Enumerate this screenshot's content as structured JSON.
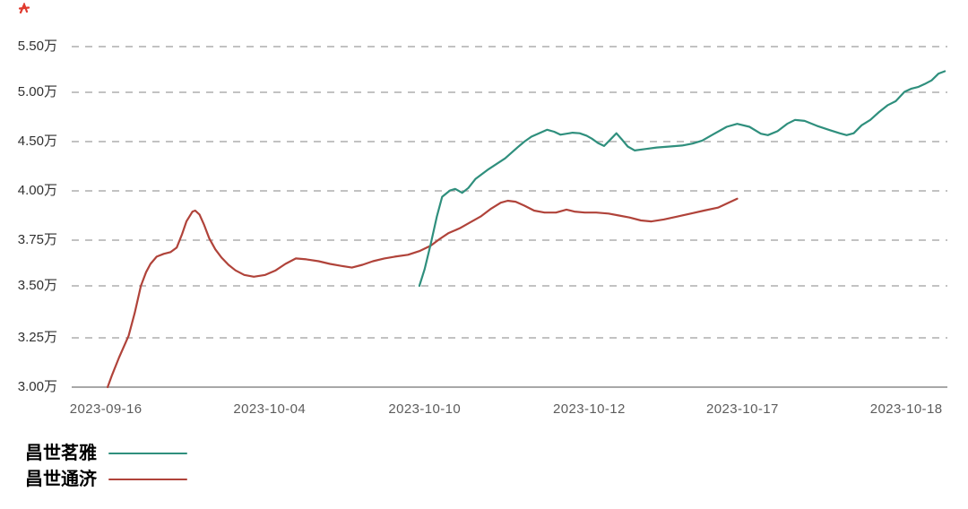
{
  "colors": {
    "mingya": "#2f8f7d",
    "tongji": "#b0433a",
    "grid": "#adadad",
    "axis": "#8c8c8c",
    "y_label_text": "#303030",
    "x_label_text": "#5c5c5c",
    "legend_text": "#000000",
    "artifact_red": "#e03b2f"
  },
  "chart_data": {
    "type": "line",
    "title": "",
    "unit": "万",
    "grid": {
      "style": "dashed",
      "baseline": "solid"
    },
    "legend": {
      "position": "bottom-left"
    },
    "y_axis": {
      "note": "non-linear axis: 0.50万 steps above 4.00万, 0.25万 steps below; equal pixel spacing",
      "ticks": [
        {
          "label": "5.50万",
          "value": 5.5
        },
        {
          "label": "5.00万",
          "value": 5.0
        },
        {
          "label": "4.50万",
          "value": 4.5
        },
        {
          "label": "4.00万",
          "value": 4.0
        },
        {
          "label": "3.75万",
          "value": 3.75
        },
        {
          "label": "3.50万",
          "value": 3.5
        },
        {
          "label": "3.25万",
          "value": 3.25
        },
        {
          "label": "3.00万",
          "value": 3.0
        }
      ]
    },
    "x_axis": {
      "type": "category-dates",
      "ticks": [
        {
          "label": "2023-09-16",
          "pos": 0.039
        },
        {
          "label": "2023-10-04",
          "pos": 0.226
        },
        {
          "label": "2023-10-10",
          "pos": 0.403
        },
        {
          "label": "2023-10-12",
          "pos": 0.591
        },
        {
          "label": "2023-10-17",
          "pos": 0.766
        },
        {
          "label": "2023-10-18",
          "pos": 0.953
        }
      ]
    },
    "series": [
      {
        "name": "昌世茗雅",
        "color": "#2f8f7d",
        "points": [
          [
            0.397,
            3.5
          ],
          [
            0.403,
            3.59
          ],
          [
            0.41,
            3.73
          ],
          [
            0.417,
            3.87
          ],
          [
            0.423,
            3.97
          ],
          [
            0.432,
            4.005
          ],
          [
            0.438,
            4.02
          ],
          [
            0.446,
            3.99
          ],
          [
            0.453,
            4.03
          ],
          [
            0.461,
            4.12
          ],
          [
            0.476,
            4.22
          ],
          [
            0.495,
            4.33
          ],
          [
            0.509,
            4.44
          ],
          [
            0.517,
            4.5
          ],
          [
            0.525,
            4.55
          ],
          [
            0.543,
            4.62
          ],
          [
            0.551,
            4.6
          ],
          [
            0.558,
            4.57
          ],
          [
            0.572,
            4.59
          ],
          [
            0.58,
            4.585
          ],
          [
            0.588,
            4.56
          ],
          [
            0.594,
            4.53
          ],
          [
            0.601,
            4.485
          ],
          [
            0.608,
            4.455
          ],
          [
            0.615,
            4.52
          ],
          [
            0.622,
            4.585
          ],
          [
            0.629,
            4.515
          ],
          [
            0.635,
            4.45
          ],
          [
            0.643,
            4.41
          ],
          [
            0.655,
            4.425
          ],
          [
            0.668,
            4.44
          ],
          [
            0.683,
            4.45
          ],
          [
            0.697,
            4.46
          ],
          [
            0.709,
            4.48
          ],
          [
            0.72,
            4.51
          ],
          [
            0.733,
            4.575
          ],
          [
            0.748,
            4.65
          ],
          [
            0.76,
            4.68
          ],
          [
            0.774,
            4.65
          ],
          [
            0.787,
            4.58
          ],
          [
            0.795,
            4.565
          ],
          [
            0.806,
            4.605
          ],
          [
            0.817,
            4.68
          ],
          [
            0.826,
            4.72
          ],
          [
            0.837,
            4.71
          ],
          [
            0.851,
            4.66
          ],
          [
            0.866,
            4.615
          ],
          [
            0.877,
            4.585
          ],
          [
            0.885,
            4.565
          ],
          [
            0.893,
            4.585
          ],
          [
            0.902,
            4.665
          ],
          [
            0.912,
            4.72
          ],
          [
            0.922,
            4.8
          ],
          [
            0.932,
            4.87
          ],
          [
            0.941,
            4.91
          ],
          [
            0.951,
            5.005
          ],
          [
            0.959,
            5.04
          ],
          [
            0.967,
            5.06
          ],
          [
            0.974,
            5.09
          ],
          [
            0.982,
            5.13
          ],
          [
            0.99,
            5.205
          ],
          [
            0.997,
            5.23
          ]
        ]
      },
      {
        "name": "昌世通济",
        "color": "#b0433a",
        "points": [
          [
            0.041,
            3.0
          ],
          [
            0.046,
            3.06
          ],
          [
            0.054,
            3.15
          ],
          [
            0.065,
            3.26
          ],
          [
            0.072,
            3.37
          ],
          [
            0.079,
            3.5
          ],
          [
            0.085,
            3.575
          ],
          [
            0.09,
            3.62
          ],
          [
            0.097,
            3.66
          ],
          [
            0.105,
            3.675
          ],
          [
            0.113,
            3.685
          ],
          [
            0.12,
            3.71
          ],
          [
            0.126,
            3.78
          ],
          [
            0.131,
            3.845
          ],
          [
            0.138,
            3.895
          ],
          [
            0.141,
            3.9
          ],
          [
            0.146,
            3.88
          ],
          [
            0.151,
            3.83
          ],
          [
            0.157,
            3.76
          ],
          [
            0.164,
            3.7
          ],
          [
            0.171,
            3.655
          ],
          [
            0.179,
            3.615
          ],
          [
            0.187,
            3.585
          ],
          [
            0.197,
            3.56
          ],
          [
            0.208,
            3.55
          ],
          [
            0.221,
            3.56
          ],
          [
            0.233,
            3.585
          ],
          [
            0.244,
            3.62
          ],
          [
            0.256,
            3.65
          ],
          [
            0.268,
            3.645
          ],
          [
            0.282,
            3.635
          ],
          [
            0.295,
            3.62
          ],
          [
            0.307,
            3.61
          ],
          [
            0.32,
            3.6
          ],
          [
            0.332,
            3.615
          ],
          [
            0.344,
            3.635
          ],
          [
            0.357,
            3.65
          ],
          [
            0.369,
            3.66
          ],
          [
            0.384,
            3.67
          ],
          [
            0.397,
            3.69
          ],
          [
            0.41,
            3.72
          ],
          [
            0.42,
            3.755
          ],
          [
            0.43,
            3.785
          ],
          [
            0.443,
            3.81
          ],
          [
            0.455,
            3.84
          ],
          [
            0.467,
            3.87
          ],
          [
            0.479,
            3.91
          ],
          [
            0.49,
            3.94
          ],
          [
            0.498,
            3.95
          ],
          [
            0.507,
            3.945
          ],
          [
            0.517,
            3.925
          ],
          [
            0.528,
            3.9
          ],
          [
            0.54,
            3.89
          ],
          [
            0.553,
            3.89
          ],
          [
            0.565,
            3.905
          ],
          [
            0.574,
            3.895
          ],
          [
            0.586,
            3.89
          ],
          [
            0.599,
            3.89
          ],
          [
            0.613,
            3.885
          ],
          [
            0.625,
            3.875
          ],
          [
            0.637,
            3.865
          ],
          [
            0.65,
            3.85
          ],
          [
            0.662,
            3.845
          ],
          [
            0.676,
            3.855
          ],
          [
            0.692,
            3.87
          ],
          [
            0.707,
            3.885
          ],
          [
            0.722,
            3.9
          ],
          [
            0.738,
            3.915
          ],
          [
            0.75,
            3.94
          ],
          [
            0.76,
            3.96
          ]
        ]
      }
    ]
  }
}
